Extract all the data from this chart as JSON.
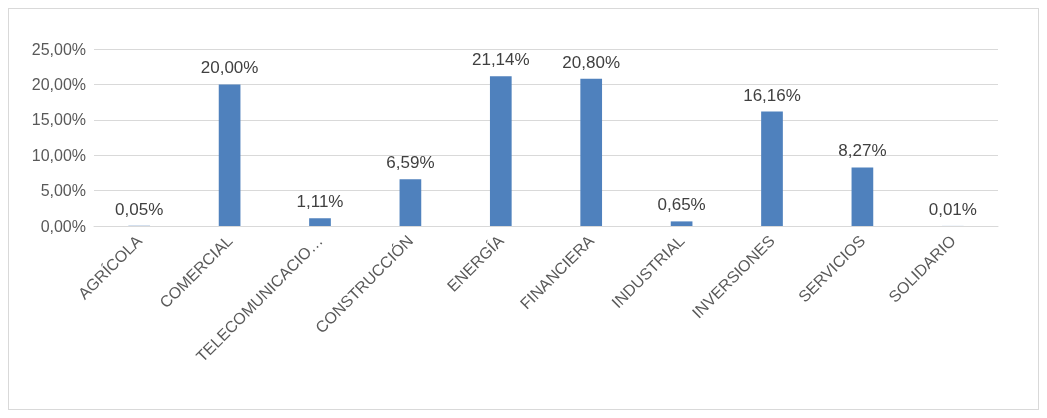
{
  "chart_data": {
    "type": "bar",
    "categories": [
      "AGRÍCOLA",
      "COMERCIAL",
      "TELECOMUNICACIO…",
      "CONSTRUCCIÓN",
      "ENERGÍA",
      "FINANCIERA",
      "INDUSTRIAL",
      "INVERSIONES",
      "SERVICIOS",
      "SOLIDARIO"
    ],
    "values": [
      0.05,
      20.0,
      1.11,
      6.59,
      21.14,
      20.8,
      0.65,
      16.16,
      8.27,
      0.01
    ],
    "value_labels": [
      "0,05%",
      "20,00%",
      "1,11%",
      "6,59%",
      "21,14%",
      "20,80%",
      "0,65%",
      "16,16%",
      "8,27%",
      "0,01%"
    ],
    "color": "#4f81bd",
    "ylim": [
      0,
      25
    ],
    "yticks": [
      {
        "value": 0,
        "label": "0,00%"
      },
      {
        "value": 5,
        "label": "5,00%"
      },
      {
        "value": 10,
        "label": "10,00%"
      },
      {
        "value": 15,
        "label": "15,00%"
      },
      {
        "value": 20,
        "label": "20,00%"
      },
      {
        "value": 25,
        "label": "25,00%"
      }
    ],
    "grid": "y"
  }
}
